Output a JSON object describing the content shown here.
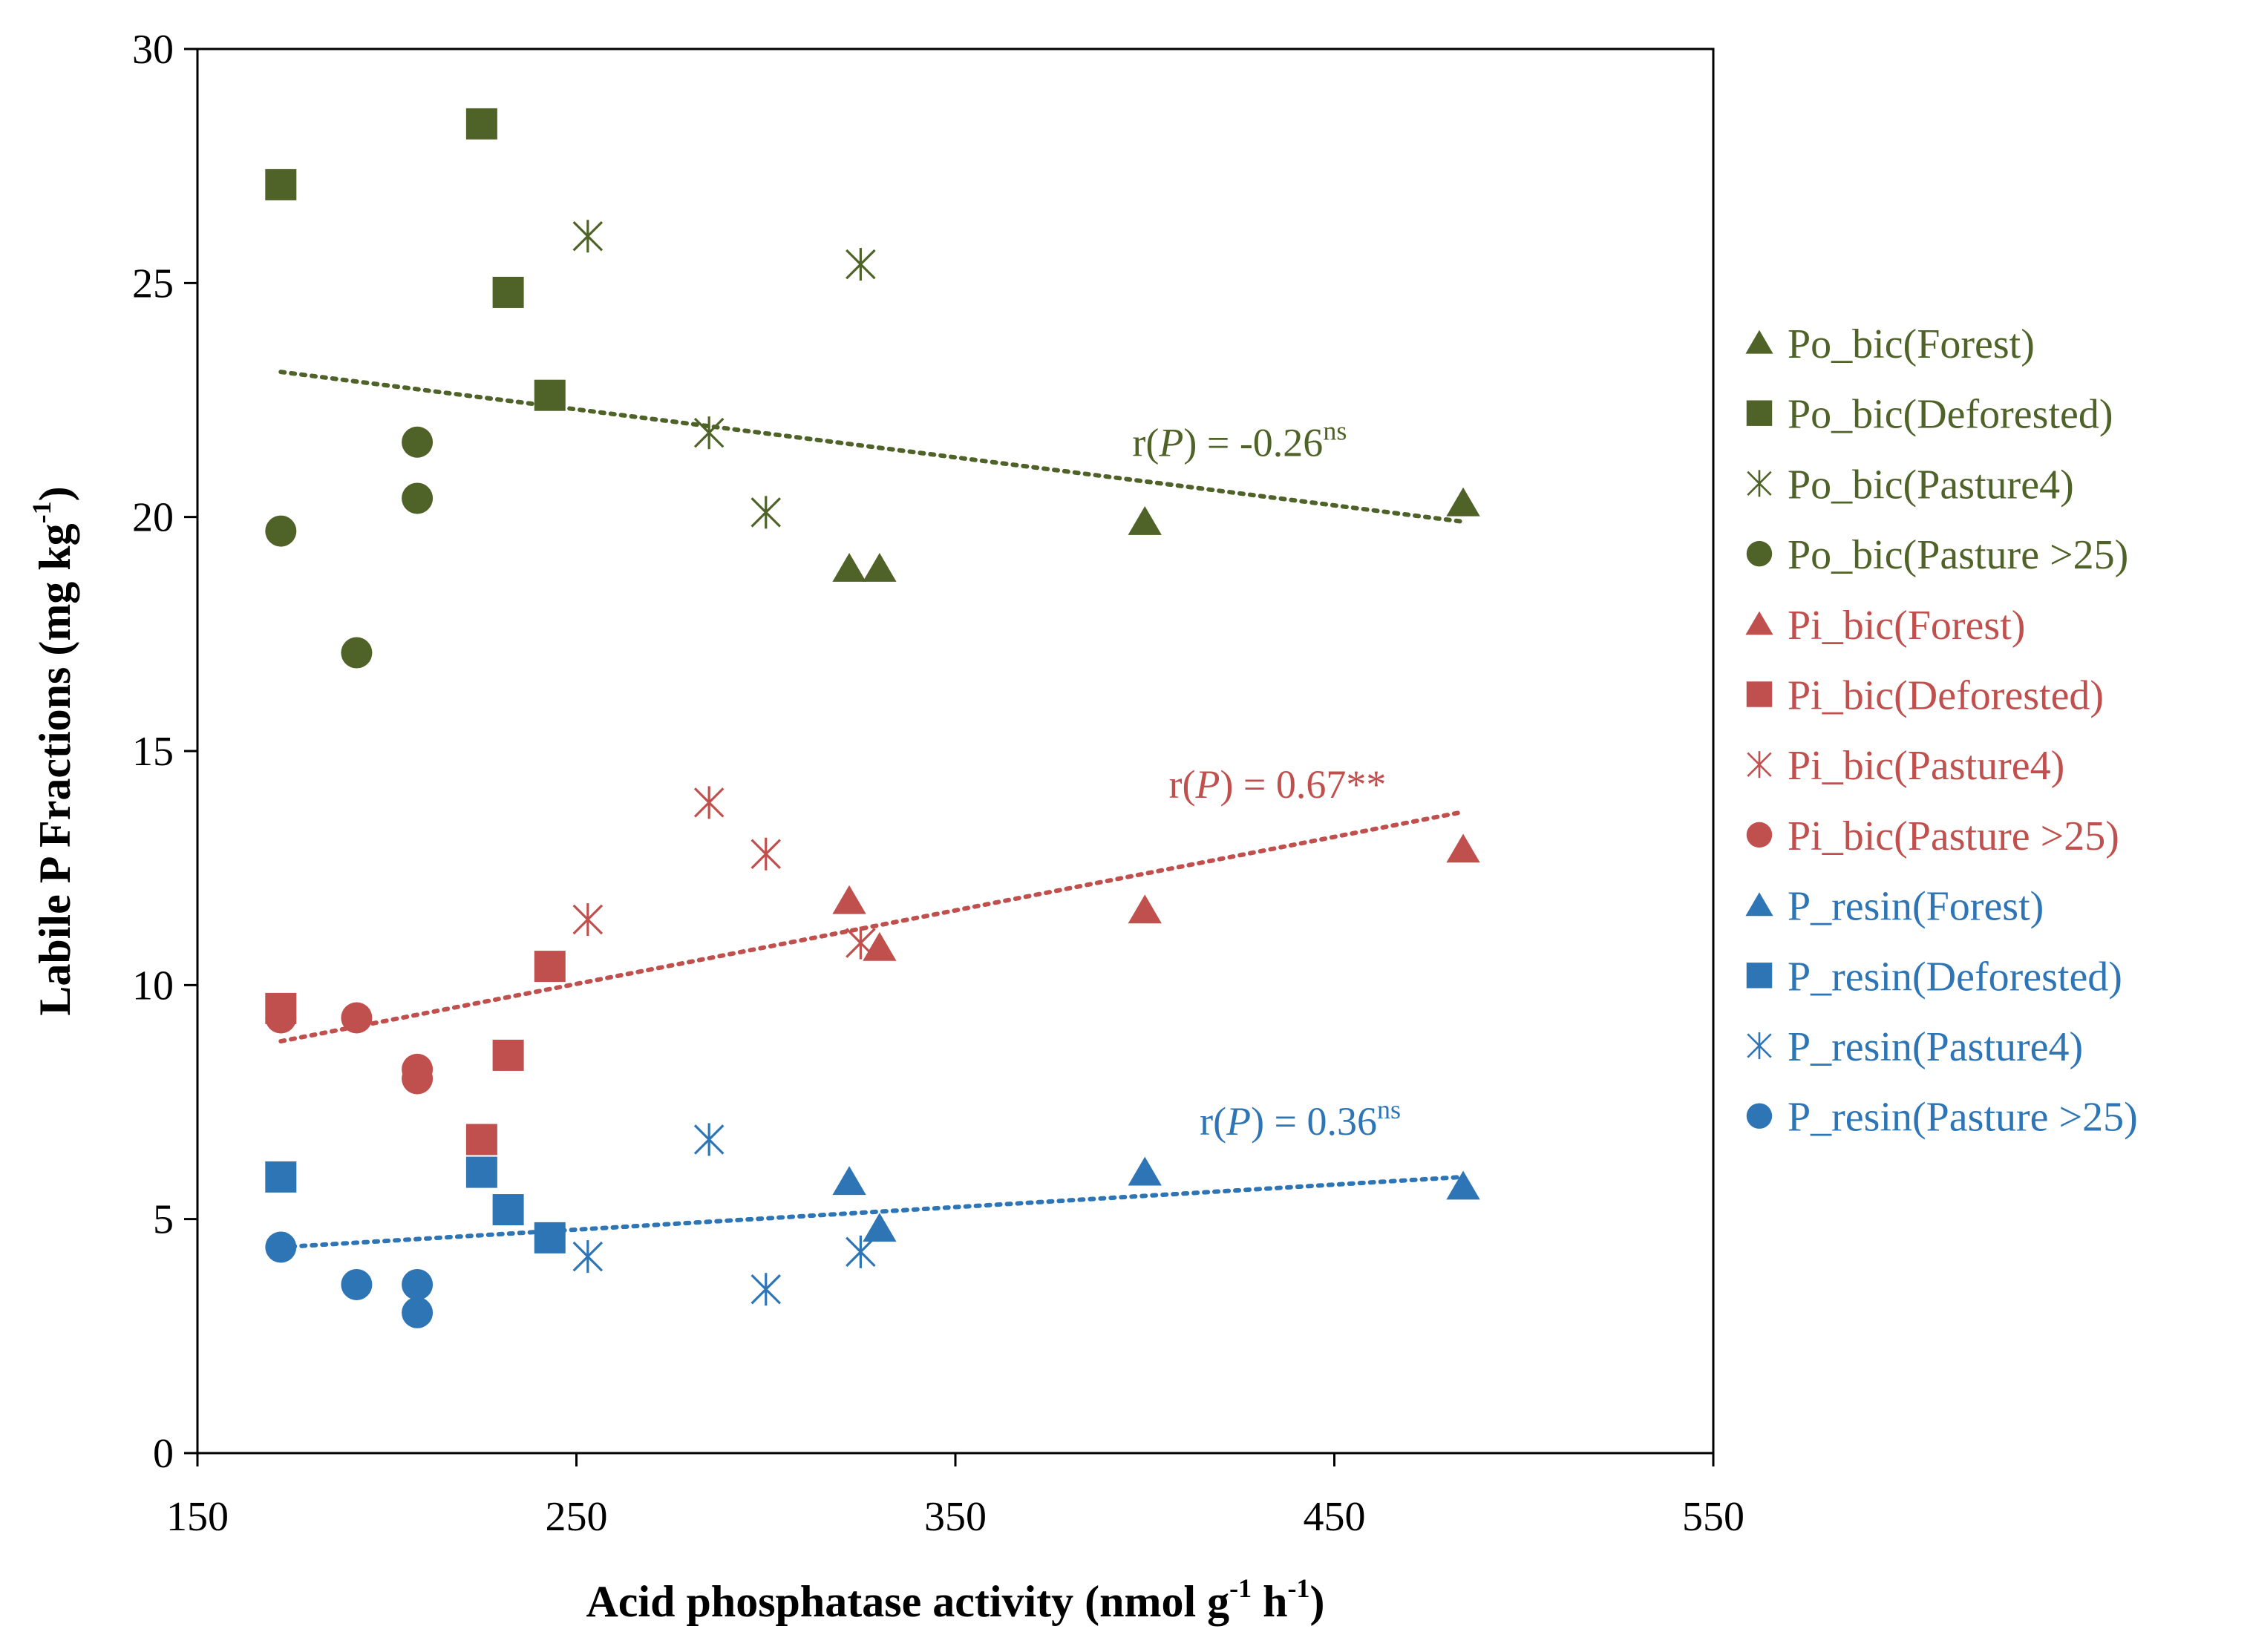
{
  "chart_data": {
    "type": "scatter",
    "title": "",
    "xlabel": "Acid phosphatase activity (nmol g",
    "xlabel_sup1": "-1",
    "xlabel_mid": " h",
    "xlabel_sup2": "-1",
    "xlabel_end": ")",
    "ylabel": "Labile P Fractions (mg kg",
    "ylabel_sup": "-1",
    "ylabel_end": ")",
    "xlim": [
      150,
      550
    ],
    "ylim": [
      0,
      30
    ],
    "x_ticks": [
      150,
      250,
      350,
      450,
      550
    ],
    "y_ticks": [
      0,
      5,
      10,
      15,
      20,
      25,
      30
    ],
    "grid": false,
    "legend_position": "right",
    "colors": {
      "green": "#4f6228",
      "red": "#c0504d",
      "blue": "#2e75b6"
    },
    "series": [
      {
        "name": "Po_bic(Forest)",
        "marker": "triangle",
        "color": "#4f6228",
        "points": [
          [
            322,
            18.9
          ],
          [
            330,
            18.9
          ],
          [
            400,
            19.9
          ],
          [
            484,
            20.3
          ]
        ]
      },
      {
        "name": "Po_bic(Deforested)",
        "marker": "square",
        "color": "#4f6228",
        "points": [
          [
            172,
            27.1
          ],
          [
            225,
            28.4
          ],
          [
            232,
            24.8
          ],
          [
            243,
            22.6
          ]
        ]
      },
      {
        "name": "Po_bic(Pasture4)",
        "marker": "asterisk",
        "color": "#4f6228",
        "points": [
          [
            253,
            26.0
          ],
          [
            285,
            21.8
          ],
          [
            300,
            20.1
          ],
          [
            325,
            25.4
          ]
        ]
      },
      {
        "name": "Po_bic(Pasture >25)",
        "marker": "circle",
        "color": "#4f6228",
        "points": [
          [
            172,
            19.7
          ],
          [
            192,
            17.1
          ],
          [
            208,
            21.6
          ],
          [
            208,
            20.4
          ]
        ]
      },
      {
        "name": "Pi_bic(Forest)",
        "marker": "triangle",
        "color": "#c0504d",
        "points": [
          [
            322,
            11.8
          ],
          [
            330,
            10.8
          ],
          [
            400,
            11.6
          ],
          [
            484,
            12.9
          ]
        ]
      },
      {
        "name": "Pi_bic(Deforested)",
        "marker": "square",
        "color": "#c0504d",
        "points": [
          [
            172,
            9.5
          ],
          [
            225,
            6.7
          ],
          [
            232,
            8.5
          ],
          [
            243,
            10.4
          ]
        ]
      },
      {
        "name": "Pi_bic(Pasture4)",
        "marker": "asterisk",
        "color": "#c0504d",
        "points": [
          [
            253,
            11.4
          ],
          [
            285,
            13.9
          ],
          [
            300,
            12.8
          ],
          [
            325,
            10.9
          ]
        ]
      },
      {
        "name": "Pi_bic(Pasture >25)",
        "marker": "circle",
        "color": "#c0504d",
        "points": [
          [
            172,
            9.3
          ],
          [
            192,
            9.3
          ],
          [
            208,
            8.2
          ],
          [
            208,
            8.0
          ]
        ]
      },
      {
        "name": "P_resin(Forest)",
        "marker": "triangle",
        "color": "#2e75b6",
        "points": [
          [
            322,
            5.8
          ],
          [
            330,
            4.8
          ],
          [
            400,
            6.0
          ],
          [
            484,
            5.7
          ]
        ]
      },
      {
        "name": "P_resin(Deforested)",
        "marker": "square",
        "color": "#2e75b6",
        "points": [
          [
            172,
            5.9
          ],
          [
            225,
            6.0
          ],
          [
            232,
            5.2
          ],
          [
            243,
            4.6
          ]
        ]
      },
      {
        "name": "P_resin(Pasture4)",
        "marker": "asterisk",
        "color": "#2e75b6",
        "points": [
          [
            253,
            4.2
          ],
          [
            285,
            6.7
          ],
          [
            300,
            3.5
          ],
          [
            325,
            4.3
          ]
        ]
      },
      {
        "name": "P_resin(Pasture >25)",
        "marker": "circle",
        "color": "#2e75b6",
        "points": [
          [
            172,
            4.4
          ],
          [
            192,
            3.6
          ],
          [
            208,
            3.6
          ],
          [
            208,
            3.0
          ]
        ]
      }
    ],
    "trendlines": [
      {
        "group": "Po_bic",
        "color": "#4f6228",
        "x": [
          172,
          484
        ],
        "y": [
          23.1,
          19.9
        ],
        "label_prefix": "r(",
        "label_italic": "P",
        "label_mid": ") = -0.26",
        "label_sup": "ns",
        "label_at": [
          425,
          21.3
        ]
      },
      {
        "group": "Pi_bic",
        "color": "#c0504d",
        "x": [
          172,
          484
        ],
        "y": [
          8.8,
          13.7
        ],
        "label_prefix": "r(",
        "label_italic": "P",
        "label_mid": ") = 0.67**",
        "label_sup": "",
        "label_at": [
          435,
          14.0
        ]
      },
      {
        "group": "P_resin",
        "color": "#2e75b6",
        "x": [
          172,
          484
        ],
        "y": [
          4.4,
          5.9
        ],
        "label_prefix": "r(",
        "label_italic": "P",
        "label_mid": ") = 0.36",
        "label_sup": "ns",
        "label_at": [
          441,
          6.8
        ]
      }
    ]
  }
}
